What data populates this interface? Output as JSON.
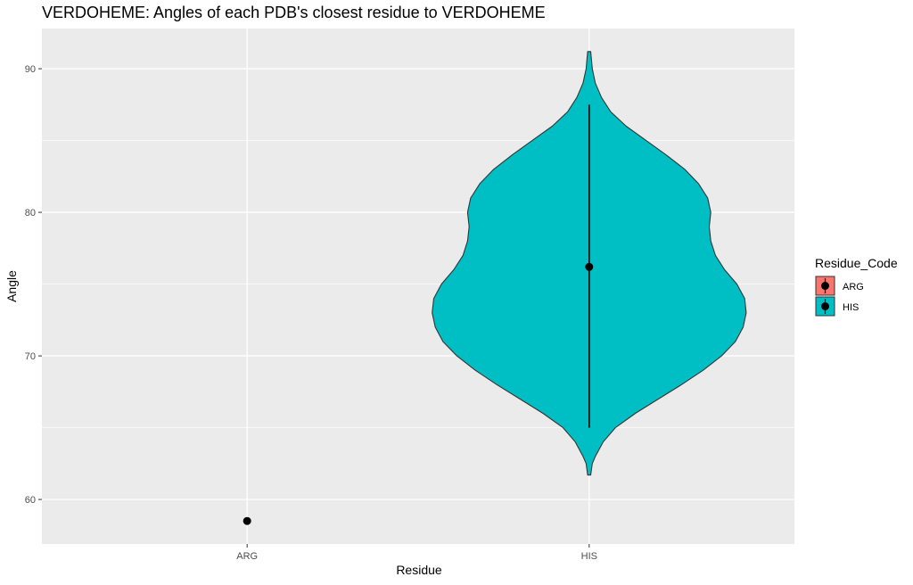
{
  "chart_data": {
    "type": "violin",
    "title": "VERDOHEME: Angles of each PDB's closest residue to VERDOHEME",
    "xlabel": "Residue",
    "ylabel": "Angle",
    "categories": [
      "ARG",
      "HIS"
    ],
    "ylim": [
      56.9,
      92.8
    ],
    "y_ticks": [
      60,
      70,
      80,
      90
    ],
    "grid": true,
    "background": "#ebebeb",
    "legend": {
      "title": "Residue_Code",
      "position": "right",
      "entries": [
        {
          "label": "ARG",
          "color": "#f8766d"
        },
        {
          "label": "HIS",
          "color": "#00bfc4"
        }
      ]
    },
    "series": [
      {
        "category": "ARG",
        "color": "#f8766d",
        "point": 58.5,
        "range": [
          58.5,
          58.5
        ],
        "violin_profile": []
      },
      {
        "category": "HIS",
        "color": "#00bfc4",
        "point": 76.2,
        "range": [
          65.0,
          87.5
        ],
        "violin_profile": [
          [
            61.7,
            0.01
          ],
          [
            62.5,
            0.02
          ],
          [
            63.0,
            0.04
          ],
          [
            64.0,
            0.09
          ],
          [
            65.0,
            0.17
          ],
          [
            66.0,
            0.3
          ],
          [
            67.0,
            0.45
          ],
          [
            68.0,
            0.6
          ],
          [
            69.0,
            0.74
          ],
          [
            70.0,
            0.86
          ],
          [
            71.0,
            0.95
          ],
          [
            72.0,
            1.0
          ],
          [
            73.0,
            1.02
          ],
          [
            74.0,
            1.01
          ],
          [
            75.0,
            0.96
          ],
          [
            76.0,
            0.88
          ],
          [
            77.0,
            0.82
          ],
          [
            78.0,
            0.79
          ],
          [
            79.0,
            0.78
          ],
          [
            80.0,
            0.79
          ],
          [
            81.0,
            0.77
          ],
          [
            82.0,
            0.71
          ],
          [
            83.0,
            0.62
          ],
          [
            84.0,
            0.5
          ],
          [
            85.0,
            0.37
          ],
          [
            86.0,
            0.24
          ],
          [
            87.0,
            0.14
          ],
          [
            88.0,
            0.08
          ],
          [
            89.0,
            0.04
          ],
          [
            90.0,
            0.02
          ],
          [
            91.2,
            0.01
          ]
        ]
      }
    ]
  }
}
